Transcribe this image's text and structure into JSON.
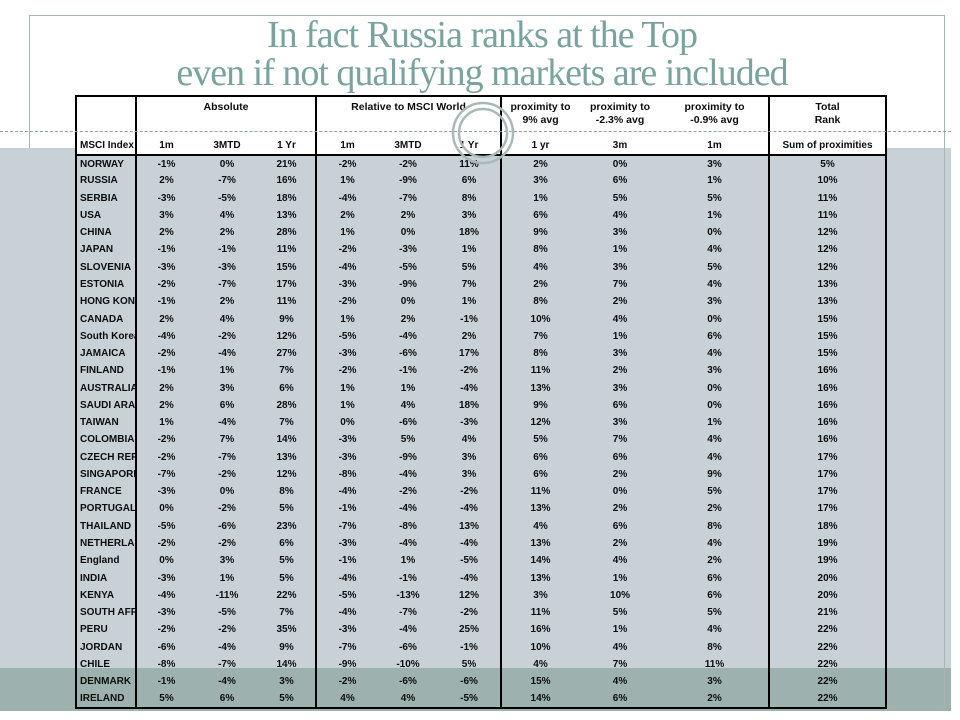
{
  "slide": {
    "title_line1": "In fact Russia ranks at the Top",
    "title_line2": "even if not qualifying markets are included",
    "colors": {
      "title": "#7aa29e",
      "band_light": "#c8d1d6",
      "band_dark": "#9db2ae",
      "ring": "#a9b9ba",
      "dashed_line": "#8da0a2",
      "table_border": "#000000"
    }
  },
  "header": {
    "col0": "MSCI Index",
    "group_absolute": "Absolute",
    "group_relative": "Relative to MSCI World",
    "abs_subs": [
      "1m",
      "3MTD",
      "1 Yr"
    ],
    "rel_subs": [
      "1m",
      "3MTD",
      "1 Yr"
    ],
    "prox1": {
      "l1": "proximity to",
      "l2": "9% avg",
      "sub": "1 yr"
    },
    "prox2": {
      "l1": "proximity to",
      "l2": "-2.3% avg",
      "sub": "3m"
    },
    "prox3": {
      "l1": "proximity to",
      "l2": "-0.9% avg",
      "sub": "1m"
    },
    "total": {
      "l1": "Total",
      "l2": "Rank",
      "sub": "Sum of proximities"
    }
  },
  "chart_data": {
    "type": "table",
    "columns": [
      "MSCI Index",
      "Absolute 1m",
      "Absolute 3MTD",
      "Absolute 1 Yr",
      "Relative 1m",
      "Relative 3MTD",
      "Relative 1 Yr",
      "proximity to 9% avg 1 yr",
      "proximity to -2.3% avg 3m",
      "proximity to -0.9% avg 1m",
      "Total Rank Sum of proximities"
    ],
    "rows": [
      {
        "index": "NORWAY",
        "values": [
          "-1%",
          "0%",
          "21%",
          "-2%",
          "-2%",
          "11%",
          "2%",
          "0%",
          "3%",
          "5%"
        ],
        "highlighted": false
      },
      {
        "index": "RUSSIA",
        "values": [
          "2%",
          "-7%",
          "16%",
          "1%",
          "-9%",
          "6%",
          "3%",
          "6%",
          "1%",
          "10%"
        ],
        "highlighted": false
      },
      {
        "index": "SERBIA",
        "values": [
          "-3%",
          "-5%",
          "18%",
          "-4%",
          "-7%",
          "8%",
          "1%",
          "5%",
          "5%",
          "11%"
        ],
        "highlighted": false
      },
      {
        "index": "USA",
        "values": [
          "3%",
          "4%",
          "13%",
          "2%",
          "2%",
          "3%",
          "6%",
          "4%",
          "1%",
          "11%"
        ],
        "highlighted": false
      },
      {
        "index": "CHINA",
        "values": [
          "2%",
          "2%",
          "28%",
          "1%",
          "0%",
          "18%",
          "9%",
          "3%",
          "0%",
          "12%"
        ],
        "highlighted": false
      },
      {
        "index": "JAPAN",
        "values": [
          "-1%",
          "-1%",
          "11%",
          "-2%",
          "-3%",
          "1%",
          "8%",
          "1%",
          "4%",
          "12%"
        ],
        "highlighted": false
      },
      {
        "index": "SLOVENIA",
        "values": [
          "-3%",
          "-3%",
          "15%",
          "-4%",
          "-5%",
          "5%",
          "4%",
          "3%",
          "5%",
          "12%"
        ],
        "highlighted": false
      },
      {
        "index": "ESTONIA",
        "values": [
          "-2%",
          "-7%",
          "17%",
          "-3%",
          "-9%",
          "7%",
          "2%",
          "7%",
          "4%",
          "13%"
        ],
        "highlighted": false
      },
      {
        "index": "HONG KONG",
        "values": [
          "-1%",
          "2%",
          "11%",
          "-2%",
          "0%",
          "1%",
          "8%",
          "2%",
          "3%",
          "13%"
        ],
        "highlighted": false
      },
      {
        "index": "CANADA",
        "values": [
          "2%",
          "4%",
          "9%",
          "1%",
          "2%",
          "-1%",
          "10%",
          "4%",
          "0%",
          "15%"
        ],
        "highlighted": false
      },
      {
        "index": "South Korea",
        "values": [
          "-4%",
          "-2%",
          "12%",
          "-5%",
          "-4%",
          "2%",
          "7%",
          "1%",
          "6%",
          "15%"
        ],
        "highlighted": false
      },
      {
        "index": "JAMAICA",
        "values": [
          "-2%",
          "-4%",
          "27%",
          "-3%",
          "-6%",
          "17%",
          "8%",
          "3%",
          "4%",
          "15%"
        ],
        "highlighted": false
      },
      {
        "index": "FINLAND",
        "values": [
          "-1%",
          "1%",
          "7%",
          "-2%",
          "-1%",
          "-2%",
          "11%",
          "2%",
          "3%",
          "16%"
        ],
        "highlighted": false
      },
      {
        "index": "AUSTRALIA",
        "values": [
          "2%",
          "3%",
          "6%",
          "1%",
          "1%",
          "-4%",
          "13%",
          "3%",
          "0%",
          "16%"
        ],
        "highlighted": false
      },
      {
        "index": "SAUDI ARABIA",
        "values": [
          "2%",
          "6%",
          "28%",
          "1%",
          "4%",
          "18%",
          "9%",
          "6%",
          "0%",
          "16%"
        ],
        "highlighted": false
      },
      {
        "index": "TAIWAN",
        "values": [
          "1%",
          "-4%",
          "7%",
          "0%",
          "-6%",
          "-3%",
          "12%",
          "3%",
          "1%",
          "16%"
        ],
        "highlighted": false
      },
      {
        "index": "COLOMBIA",
        "values": [
          "-2%",
          "7%",
          "14%",
          "-3%",
          "5%",
          "4%",
          "5%",
          "7%",
          "4%",
          "16%"
        ],
        "highlighted": false
      },
      {
        "index": "CZECH REP",
        "values": [
          "-2%",
          "-7%",
          "13%",
          "-3%",
          "-9%",
          "3%",
          "6%",
          "6%",
          "4%",
          "17%"
        ],
        "highlighted": false
      },
      {
        "index": "SINGAPORE",
        "values": [
          "-7%",
          "-2%",
          "12%",
          "-8%",
          "-4%",
          "3%",
          "6%",
          "2%",
          "9%",
          "17%"
        ],
        "highlighted": false
      },
      {
        "index": "FRANCE",
        "values": [
          "-3%",
          "0%",
          "8%",
          "-4%",
          "-2%",
          "-2%",
          "11%",
          "0%",
          "5%",
          "17%"
        ],
        "highlighted": false
      },
      {
        "index": "PORTUGAL",
        "values": [
          "0%",
          "-2%",
          "5%",
          "-1%",
          "-4%",
          "-4%",
          "13%",
          "2%",
          "2%",
          "17%"
        ],
        "highlighted": false
      },
      {
        "index": "THAILAND",
        "values": [
          "-5%",
          "-6%",
          "23%",
          "-7%",
          "-8%",
          "13%",
          "4%",
          "6%",
          "8%",
          "18%"
        ],
        "highlighted": false
      },
      {
        "index": "NETHERLANDS",
        "values": [
          "-2%",
          "-2%",
          "6%",
          "-3%",
          "-4%",
          "-4%",
          "13%",
          "2%",
          "4%",
          "19%"
        ],
        "highlighted": false
      },
      {
        "index": "England",
        "values": [
          "0%",
          "3%",
          "5%",
          "-1%",
          "1%",
          "-5%",
          "14%",
          "4%",
          "2%",
          "19%"
        ],
        "highlighted": false
      },
      {
        "index": "INDIA",
        "values": [
          "-3%",
          "1%",
          "5%",
          "-4%",
          "-1%",
          "-4%",
          "13%",
          "1%",
          "6%",
          "20%"
        ],
        "highlighted": false
      },
      {
        "index": "KENYA",
        "values": [
          "-4%",
          "-11%",
          "22%",
          "-5%",
          "-13%",
          "12%",
          "3%",
          "10%",
          "6%",
          "20%"
        ],
        "highlighted": false
      },
      {
        "index": "SOUTH AFRICA",
        "values": [
          "-3%",
          "-5%",
          "7%",
          "-4%",
          "-7%",
          "-2%",
          "11%",
          "5%",
          "5%",
          "21%"
        ],
        "highlighted": false
      },
      {
        "index": "PERU",
        "values": [
          "-2%",
          "-2%",
          "35%",
          "-3%",
          "-4%",
          "25%",
          "16%",
          "1%",
          "4%",
          "22%"
        ],
        "highlighted": false
      },
      {
        "index": "JORDAN",
        "values": [
          "-6%",
          "-4%",
          "9%",
          "-7%",
          "-6%",
          "-1%",
          "10%",
          "4%",
          "8%",
          "22%"
        ],
        "highlighted": false
      },
      {
        "index": "CHILE",
        "values": [
          "-8%",
          "-7%",
          "14%",
          "-9%",
          "-10%",
          "5%",
          "4%",
          "7%",
          "11%",
          "22%"
        ],
        "highlighted": false
      },
      {
        "index": "DENMARK",
        "values": [
          "-1%",
          "-4%",
          "3%",
          "-2%",
          "-6%",
          "-6%",
          "15%",
          "4%",
          "3%",
          "22%"
        ],
        "highlighted": true
      },
      {
        "index": "IRELAND",
        "values": [
          "5%",
          "6%",
          "5%",
          "4%",
          "4%",
          "-5%",
          "14%",
          "6%",
          "2%",
          "22%"
        ],
        "highlighted": true
      }
    ]
  }
}
